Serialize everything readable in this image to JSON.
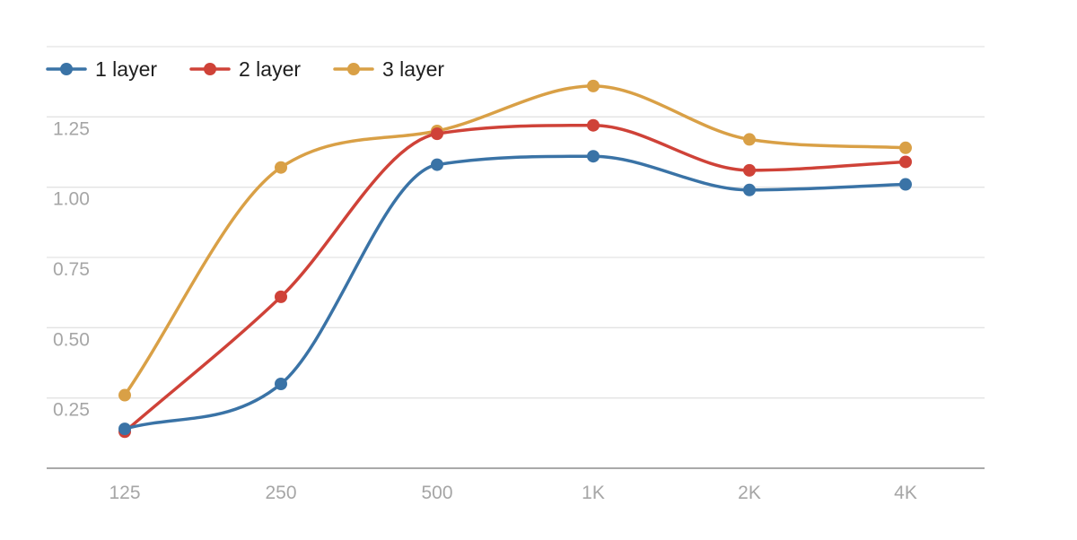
{
  "chart_data": {
    "type": "line",
    "categories": [
      "125",
      "250",
      "500",
      "1K",
      "2K",
      "4K"
    ],
    "series": [
      {
        "name": "1 layer",
        "color": "#3a73a6",
        "values": [
          0.14,
          0.3,
          1.08,
          1.11,
          0.99,
          1.01
        ]
      },
      {
        "name": "2 layer",
        "color": "#cf4238",
        "values": [
          0.13,
          0.61,
          1.19,
          1.22,
          1.06,
          1.09
        ]
      },
      {
        "name": "3 layer",
        "color": "#d9a046",
        "values": [
          0.26,
          1.07,
          1.2,
          1.36,
          1.17,
          1.14
        ]
      }
    ],
    "y_ticks": [
      "0.25",
      "0.50",
      "0.75",
      "1.00",
      "1.25"
    ],
    "ylim": [
      0,
      1.5
    ],
    "title": "",
    "xlabel": "",
    "ylabel": "",
    "grid": true,
    "legend_position": "top-left",
    "smooth": true
  }
}
